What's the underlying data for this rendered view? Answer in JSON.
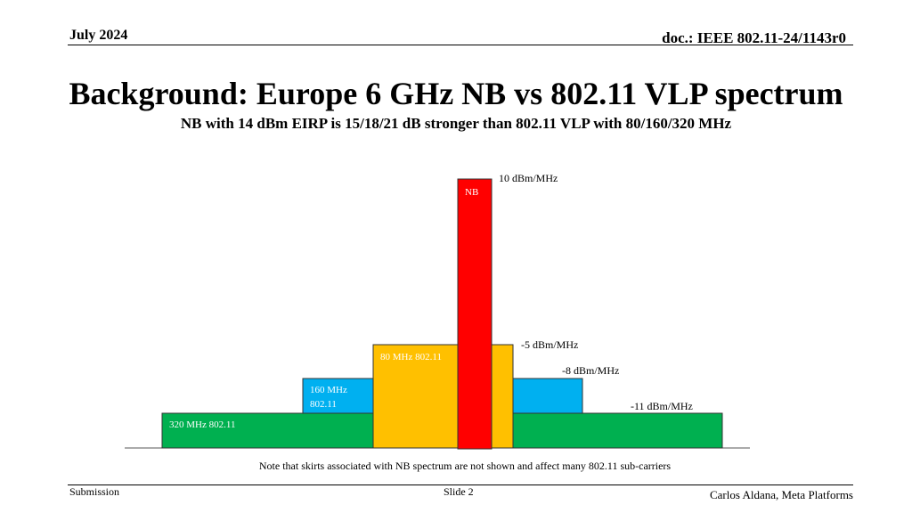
{
  "header": {
    "date": "July 2024",
    "doc": "doc.: IEEE 802.11-24/1143r0"
  },
  "title": "Background: Europe 6 GHz NB vs 802.11 VLP spectrum",
  "subtitle": "NB with 14 dBm EIRP is 15/18/21 dB stronger than 802.11 VLP with 80/160/320 MHz",
  "diagram": {
    "bars": {
      "b320": {
        "label": "320 MHz 802.11",
        "color": "#00b050"
      },
      "b160": {
        "label_line1": "160 MHz",
        "label_line2": "802.11",
        "color": "#00b0f0"
      },
      "b80": {
        "label": "80 MHz 802.11",
        "color": "#ffc000"
      },
      "nb": {
        "label": "NB",
        "color": "#ff0000"
      }
    },
    "levels": {
      "nb": "10 dBm/MHz",
      "b80": "-5 dBm/MHz",
      "b160": "-8 dBm/MHz",
      "b320": "-11 dBm/MHz"
    }
  },
  "note": "Note that skirts associated with NB spectrum are not shown and affect many 802.11 sub-carriers",
  "footer": {
    "submission": "Submission",
    "slide": "Slide 2",
    "author": "Carlos Aldana, Meta Platforms"
  }
}
